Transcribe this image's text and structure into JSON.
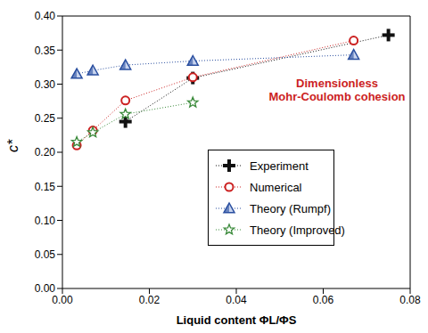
{
  "chart_data": {
    "type": "scatter",
    "x_label": "Liquid content ΦL/ΦS",
    "y_label": "c*",
    "annotation": [
      "Dimensionless",
      "Mohr-Coulomb cohesion"
    ],
    "xlim": [
      0,
      0.08
    ],
    "xticks": [
      {
        "value": 0,
        "label": "0.00"
      },
      {
        "value": 0.02,
        "label": "0.02"
      },
      {
        "value": 0.04,
        "label": "0.04"
      },
      {
        "value": 0.06,
        "label": "0.06"
      },
      {
        "value": 0.08,
        "label": "0.08"
      }
    ],
    "ylim": [
      0,
      0.4
    ],
    "yticks": [
      {
        "value": 0,
        "label": "0.00"
      },
      {
        "value": 0.05,
        "label": "0.05"
      },
      {
        "value": 0.1,
        "label": "0.10"
      },
      {
        "value": 0.15,
        "label": "0.15"
      },
      {
        "value": 0.2,
        "label": "0.20"
      },
      {
        "value": 0.25,
        "label": "0.25"
      },
      {
        "value": 0.3,
        "label": "0.30"
      },
      {
        "value": 0.35,
        "label": "0.35"
      },
      {
        "value": 0.4,
        "label": "0.40"
      }
    ],
    "legend": "lower right",
    "series": [
      {
        "name": "Experiment",
        "color": "#111111",
        "marker": "cross",
        "line_style": "dotted",
        "x": [
          0.0145,
          0.03,
          0.075
        ],
        "values": [
          0.245,
          0.309,
          0.372
        ]
      },
      {
        "name": "Numerical",
        "color": "#cc2222",
        "marker": "circle",
        "line_style": "dotted",
        "x": [
          0.0033,
          0.007,
          0.0145,
          0.03,
          0.067
        ],
        "values": [
          0.21,
          0.232,
          0.276,
          0.31,
          0.364
        ]
      },
      {
        "name": "Theory (Rumpf)",
        "color": "#2a4fa0",
        "marker": "triangle",
        "line_style": "dotted",
        "x": [
          0.0033,
          0.007,
          0.0145,
          0.03,
          0.067
        ],
        "values": [
          0.315,
          0.32,
          0.328,
          0.334,
          0.343
        ]
      },
      {
        "name": "Theory (Improved)",
        "color": "#3a8a3a",
        "marker": "star",
        "line_style": "dotted",
        "x": [
          0.0033,
          0.007,
          0.0145,
          0.03
        ],
        "values": [
          0.215,
          0.229,
          0.256,
          0.273
        ]
      }
    ]
  }
}
